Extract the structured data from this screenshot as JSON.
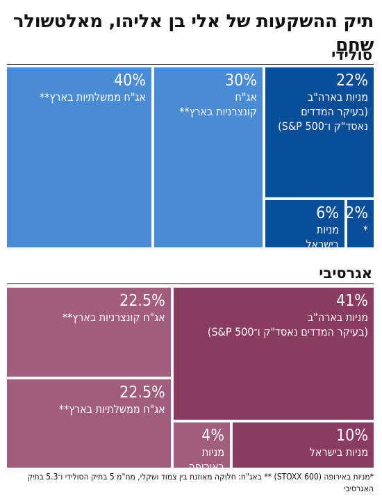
{
  "title": "תיק ההשקעות של אלי בן אליהו, מאלטשולר שחם",
  "colors": {
    "solid_light": "#4a8bd5",
    "solid_dark": "#074d98",
    "aggr_light": "#a35d7c",
    "aggr_dark": "#8a3c60"
  },
  "footnote": "*מניות באירופה (STOXX 600)   ** באג\"ח: חלוקה מאוזנת בין צמוד ושקלי, מח\"מ 5 בתיק הסולידי ו־5.3 בתיק האגרסיבי",
  "chart_data": [
    {
      "type": "treemap",
      "title": "סולידי",
      "items": [
        {
          "value": 40,
          "label": "40%",
          "name": "אג\"ח ממשלתיות בארץ**",
          "color": "solid_light"
        },
        {
          "value": 30,
          "label": "30%",
          "name": "אג\"ח\nקונצרניות בארץ**",
          "color": "solid_light"
        },
        {
          "value": 22,
          "label": "22%",
          "name": "מניות בארה\"ב\n(בעיקר המדדים\nנאסד\"ק ו־S&P 500)",
          "color": "solid_dark"
        },
        {
          "value": 6,
          "label": "6%",
          "name": "מניות\nבישראל",
          "color": "solid_dark"
        },
        {
          "value": 2,
          "label": "2%",
          "name": "*",
          "color": "solid_dark"
        }
      ]
    },
    {
      "type": "treemap",
      "title": "אגרסיבי",
      "items": [
        {
          "value": 41,
          "label": "41%",
          "name": "מניות בארה\"ב\n(בעיקר המדדים נאסד\"ק ו־S&P 500)",
          "color": "aggr_dark"
        },
        {
          "value": 22.5,
          "label": "22.5%",
          "name": "אג\"ח קונצרניות בארץ**",
          "color": "aggr_light"
        },
        {
          "value": 22.5,
          "label": "22.5%",
          "name": "אג\"ח ממשלתיות בארץ**",
          "color": "aggr_light"
        },
        {
          "value": 10,
          "label": "10%",
          "name": "מניות בישראל",
          "color": "aggr_dark"
        },
        {
          "value": 4,
          "label": "4%",
          "name": "מניות\nבאירופה",
          "color": "aggr_light"
        }
      ]
    }
  ]
}
